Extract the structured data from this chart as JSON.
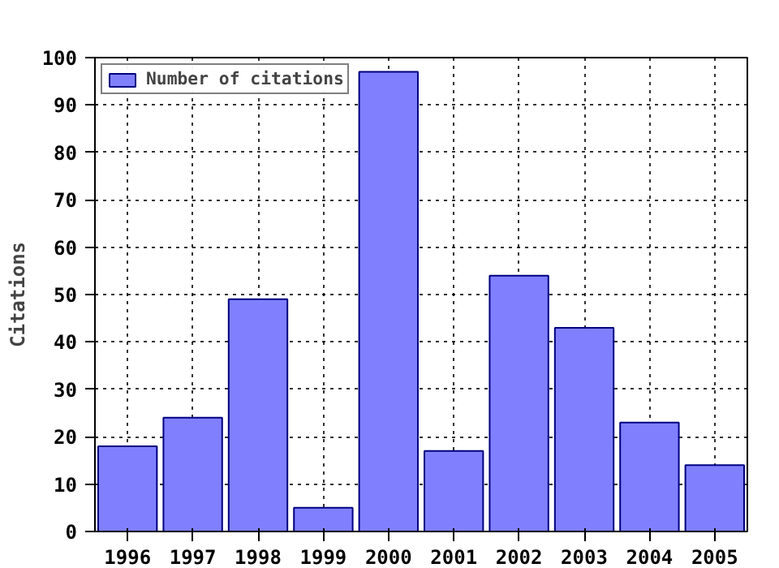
{
  "chart_data": {
    "type": "bar",
    "x": [
      1996,
      1997,
      1998,
      1999,
      2000,
      2001,
      2002,
      2003,
      2004,
      2005
    ],
    "series": [
      {
        "name": "Number of citations",
        "color": "#8080ff",
        "values": [
          18,
          24,
          49,
          5,
          97,
          17,
          54,
          43,
          23,
          14
        ]
      }
    ],
    "ylabel": "Citations",
    "xlim": [
      1995.5,
      2005.5
    ],
    "xticks": [
      1996,
      1997,
      1998,
      1999,
      2000,
      2001,
      2002,
      2003,
      2004,
      2005
    ],
    "ylim": [
      0,
      100
    ],
    "yticks": [
      0,
      10,
      20,
      30,
      40,
      50,
      60,
      70,
      80,
      90,
      100
    ],
    "grid": true,
    "legend": "top left"
  }
}
